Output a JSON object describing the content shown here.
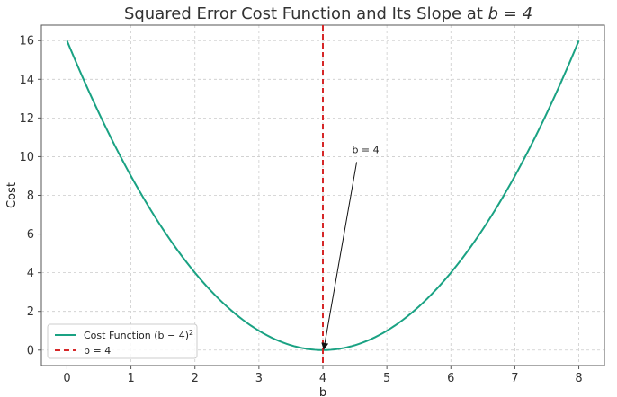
{
  "chart_data": {
    "type": "line",
    "title_prefix": "Squared Error Cost Function and Its Slope at ",
    "title_math": "b = 4",
    "xlabel": "b",
    "ylabel": "Cost",
    "xlim": [
      -0.4,
      8.4
    ],
    "ylim": [
      -0.8,
      16.8
    ],
    "xticks": [
      0,
      1,
      2,
      3,
      4,
      5,
      6,
      7,
      8
    ],
    "yticks": [
      0,
      2,
      4,
      6,
      8,
      10,
      12,
      14,
      16
    ],
    "grid": true,
    "legend_position": "bottom-left",
    "series": [
      {
        "name": "Cost Function (b − 4)",
        "name_sup": "2",
        "style": "solid",
        "color": "#1aa283",
        "x": [
          0,
          0.5,
          1,
          1.5,
          2,
          2.5,
          3,
          3.5,
          4,
          4.5,
          5,
          5.5,
          6,
          6.5,
          7,
          7.5,
          8
        ],
        "y": [
          16,
          12.25,
          9,
          6.25,
          4,
          2.25,
          1,
          0.25,
          0,
          0.25,
          1,
          2.25,
          4,
          6.25,
          9,
          12.25,
          16
        ]
      },
      {
        "name": "b = 4",
        "style": "dashed",
        "color": "#d62728",
        "vline_x": 4
      }
    ],
    "annotation": {
      "text": "b = 4",
      "text_x": 4.5,
      "text_y": 10,
      "point_x": 4,
      "point_y": 0
    }
  }
}
